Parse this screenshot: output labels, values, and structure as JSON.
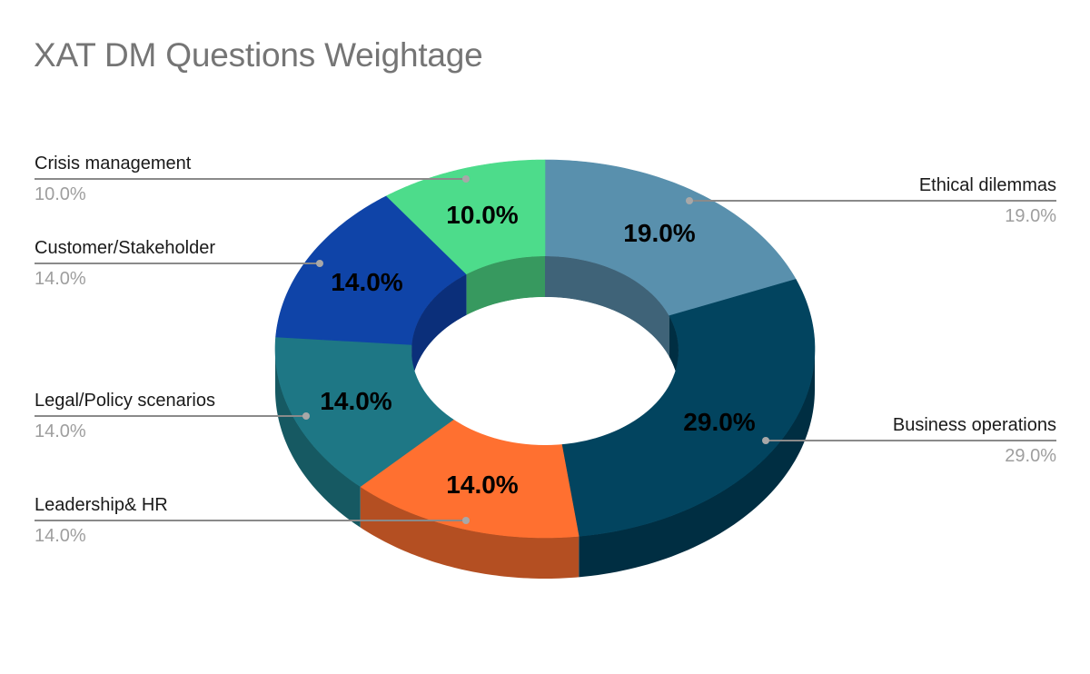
{
  "chart_data": {
    "type": "pie",
    "variant": "3d-donut",
    "title": "XAT DM Questions Weightage",
    "categories": [
      "Ethical dilemmas",
      "Business operations",
      "Leadership& HR",
      "Legal/Policy scenarios",
      "Customer/Stakeholder",
      "Crisis management"
    ],
    "values": [
      19.0,
      29.0,
      14.0,
      14.0,
      14.0,
      10.0
    ],
    "value_labels": [
      "19.0%",
      "29.0%",
      "14.0%",
      "14.0%",
      "14.0%",
      "10.0%"
    ],
    "colors": [
      "#5990ad",
      "#02445f",
      "#ff7030",
      "#1e7785",
      "#0f44a8",
      "#4ddc8b"
    ],
    "side_colors": [
      "#3f6378",
      "#002e42",
      "#b44f22",
      "#165962",
      "#0b2f7a",
      "#37995f"
    ],
    "legend_position": "labeled-callouts",
    "start_angle_deg": 0,
    "direction": "clockwise"
  },
  "title": "XAT DM Questions Weightage",
  "callouts": [
    {
      "name": "Crisis management",
      "value": "10.0%"
    },
    {
      "name": "Customer/Stakeholder",
      "value": "14.0%"
    },
    {
      "name": "Legal/Policy scenarios",
      "value": "14.0%"
    },
    {
      "name": "Leadership& HR",
      "value": "14.0%"
    },
    {
      "name": "Ethical dilemmas",
      "value": "19.0%"
    },
    {
      "name": "Business operations",
      "value": "29.0%"
    }
  ],
  "slice_labels": {
    "crisis": "10.0%",
    "customer": "14.0%",
    "legal": "14.0%",
    "leadership": "14.0%",
    "ethical": "19.0%",
    "business": "29.0%"
  }
}
